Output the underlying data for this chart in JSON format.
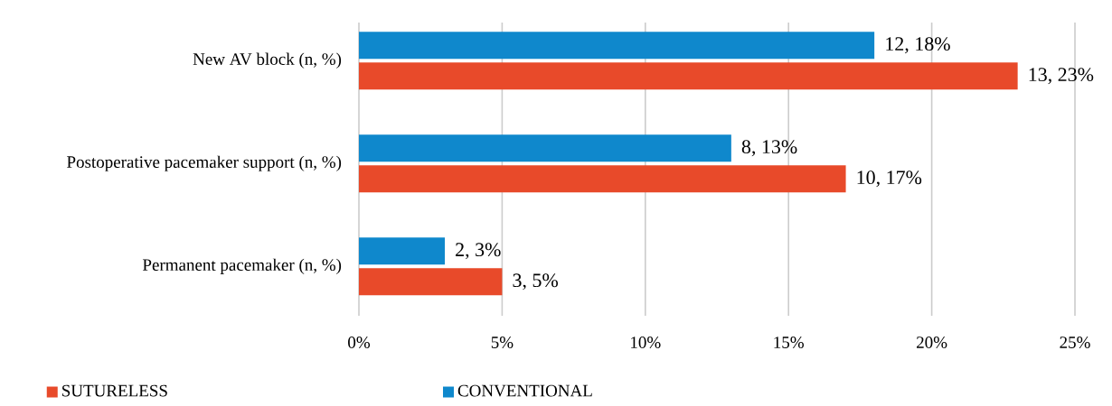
{
  "chart_data": {
    "type": "bar",
    "orientation": "horizontal",
    "categories": [
      "New AV block (n, %)",
      "Postoperative pacemaker support  (n, %)",
      "Permanent pacemaker (n, %)"
    ],
    "series": [
      {
        "name": "SUTURELESS",
        "color": "#e84a2a",
        "values": [
          23,
          17,
          5
        ],
        "value_labels": [
          "13,  23%",
          "10, 17%",
          "3, 5%"
        ]
      },
      {
        "name": "CONVENTIONAL",
        "color": "#0f88cc",
        "values": [
          18,
          13,
          3
        ],
        "value_labels": [
          "12, 18%",
          "8, 13%",
          "2, 3%"
        ]
      }
    ],
    "xlim": [
      0,
      25
    ],
    "xticks": [
      {
        "value": 0,
        "label": "0%"
      },
      {
        "value": 5,
        "label": "5%"
      },
      {
        "value": 10,
        "label": "10%"
      },
      {
        "value": 15,
        "label": "15%"
      },
      {
        "value": 20,
        "label": "20%"
      },
      {
        "value": 25,
        "label": "25%"
      }
    ],
    "grid": "x",
    "legend": "bottom"
  }
}
